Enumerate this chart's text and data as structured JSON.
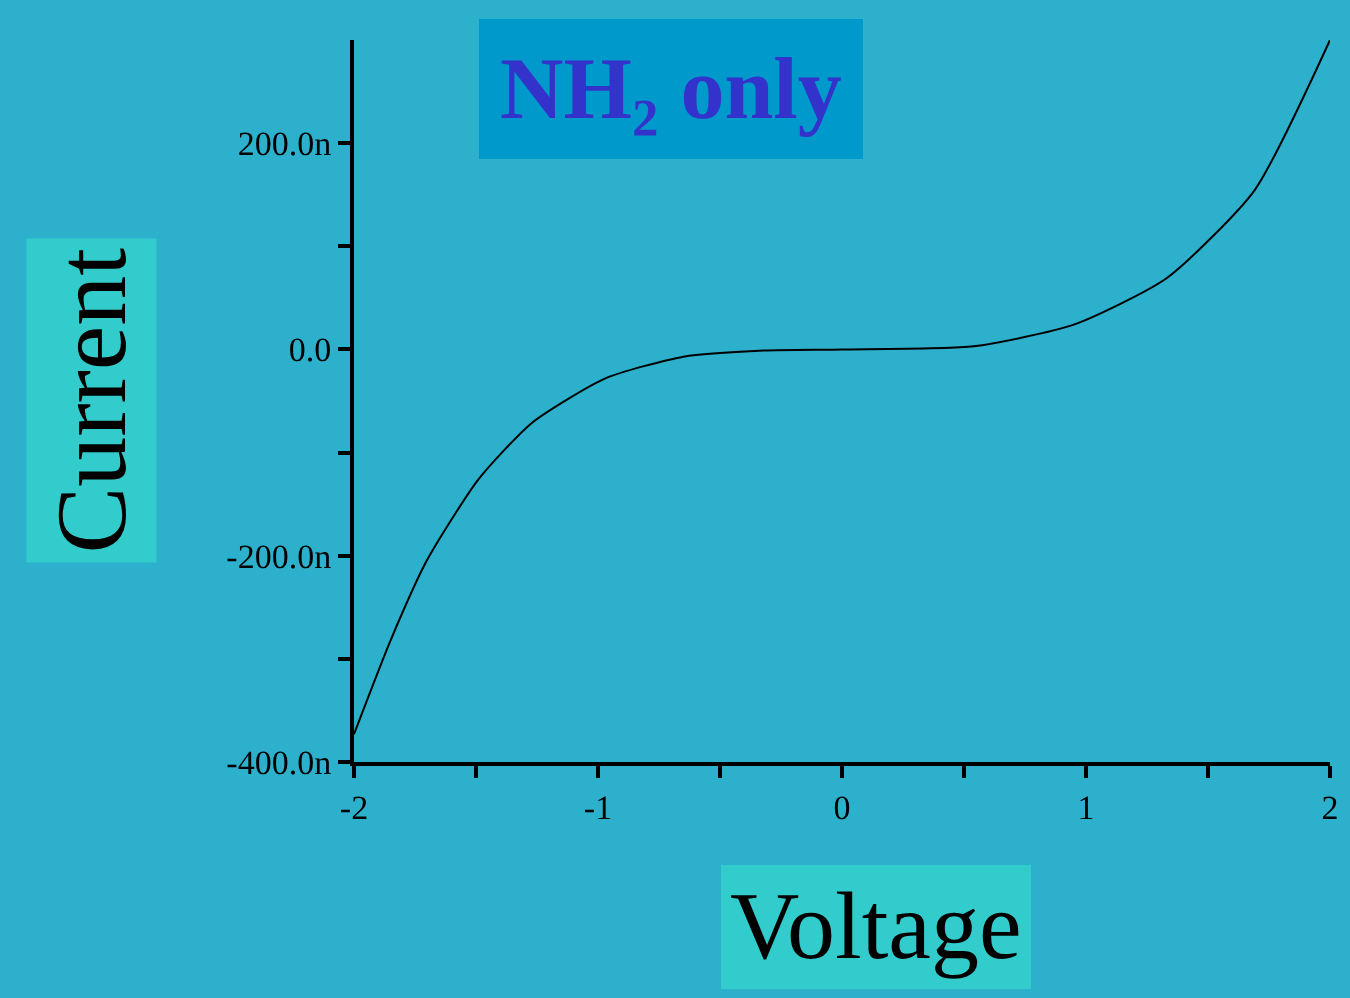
{
  "chart_data": {
    "type": "line",
    "title": "NH₂ only",
    "xlabel": "Voltage",
    "ylabel": "Current",
    "x": [
      -2.0,
      -1.85,
      -1.7,
      -1.49,
      -1.27,
      -0.97,
      -0.65,
      -0.32,
      0.0,
      0.54,
      0.95,
      1.33,
      1.69,
      2.0
    ],
    "series": [
      {
        "color": "#000000",
        "values": [
          -373,
          -282,
          -204,
          -126,
          -71,
          -28,
          -7,
          -1,
          0,
          3,
          24,
          69,
          154,
          300
        ]
      }
    ],
    "xlim": [
      -2,
      2
    ],
    "ylim": [
      -400,
      300
    ],
    "xticks": [
      -2,
      {
        "value": -1.5,
        "label": null
      },
      -1,
      {
        "value": -0.5,
        "label": null
      },
      0,
      {
        "value": 0.5,
        "label": null
      },
      1,
      {
        "value": 1.5,
        "label": null
      },
      2
    ],
    "yticks": [
      {
        "value": -400,
        "label": "-400.0n"
      },
      {
        "value": -300,
        "label": null
      },
      {
        "value": -200,
        "label": "-200.0n"
      },
      {
        "value": -100,
        "label": null
      },
      {
        "value": 0,
        "label": "0.0"
      },
      {
        "value": 100,
        "label": null
      },
      {
        "value": 200,
        "label": "200.0n"
      }
    ],
    "grid": false,
    "legend": false,
    "marker": "none",
    "line_style": "solid"
  }
}
